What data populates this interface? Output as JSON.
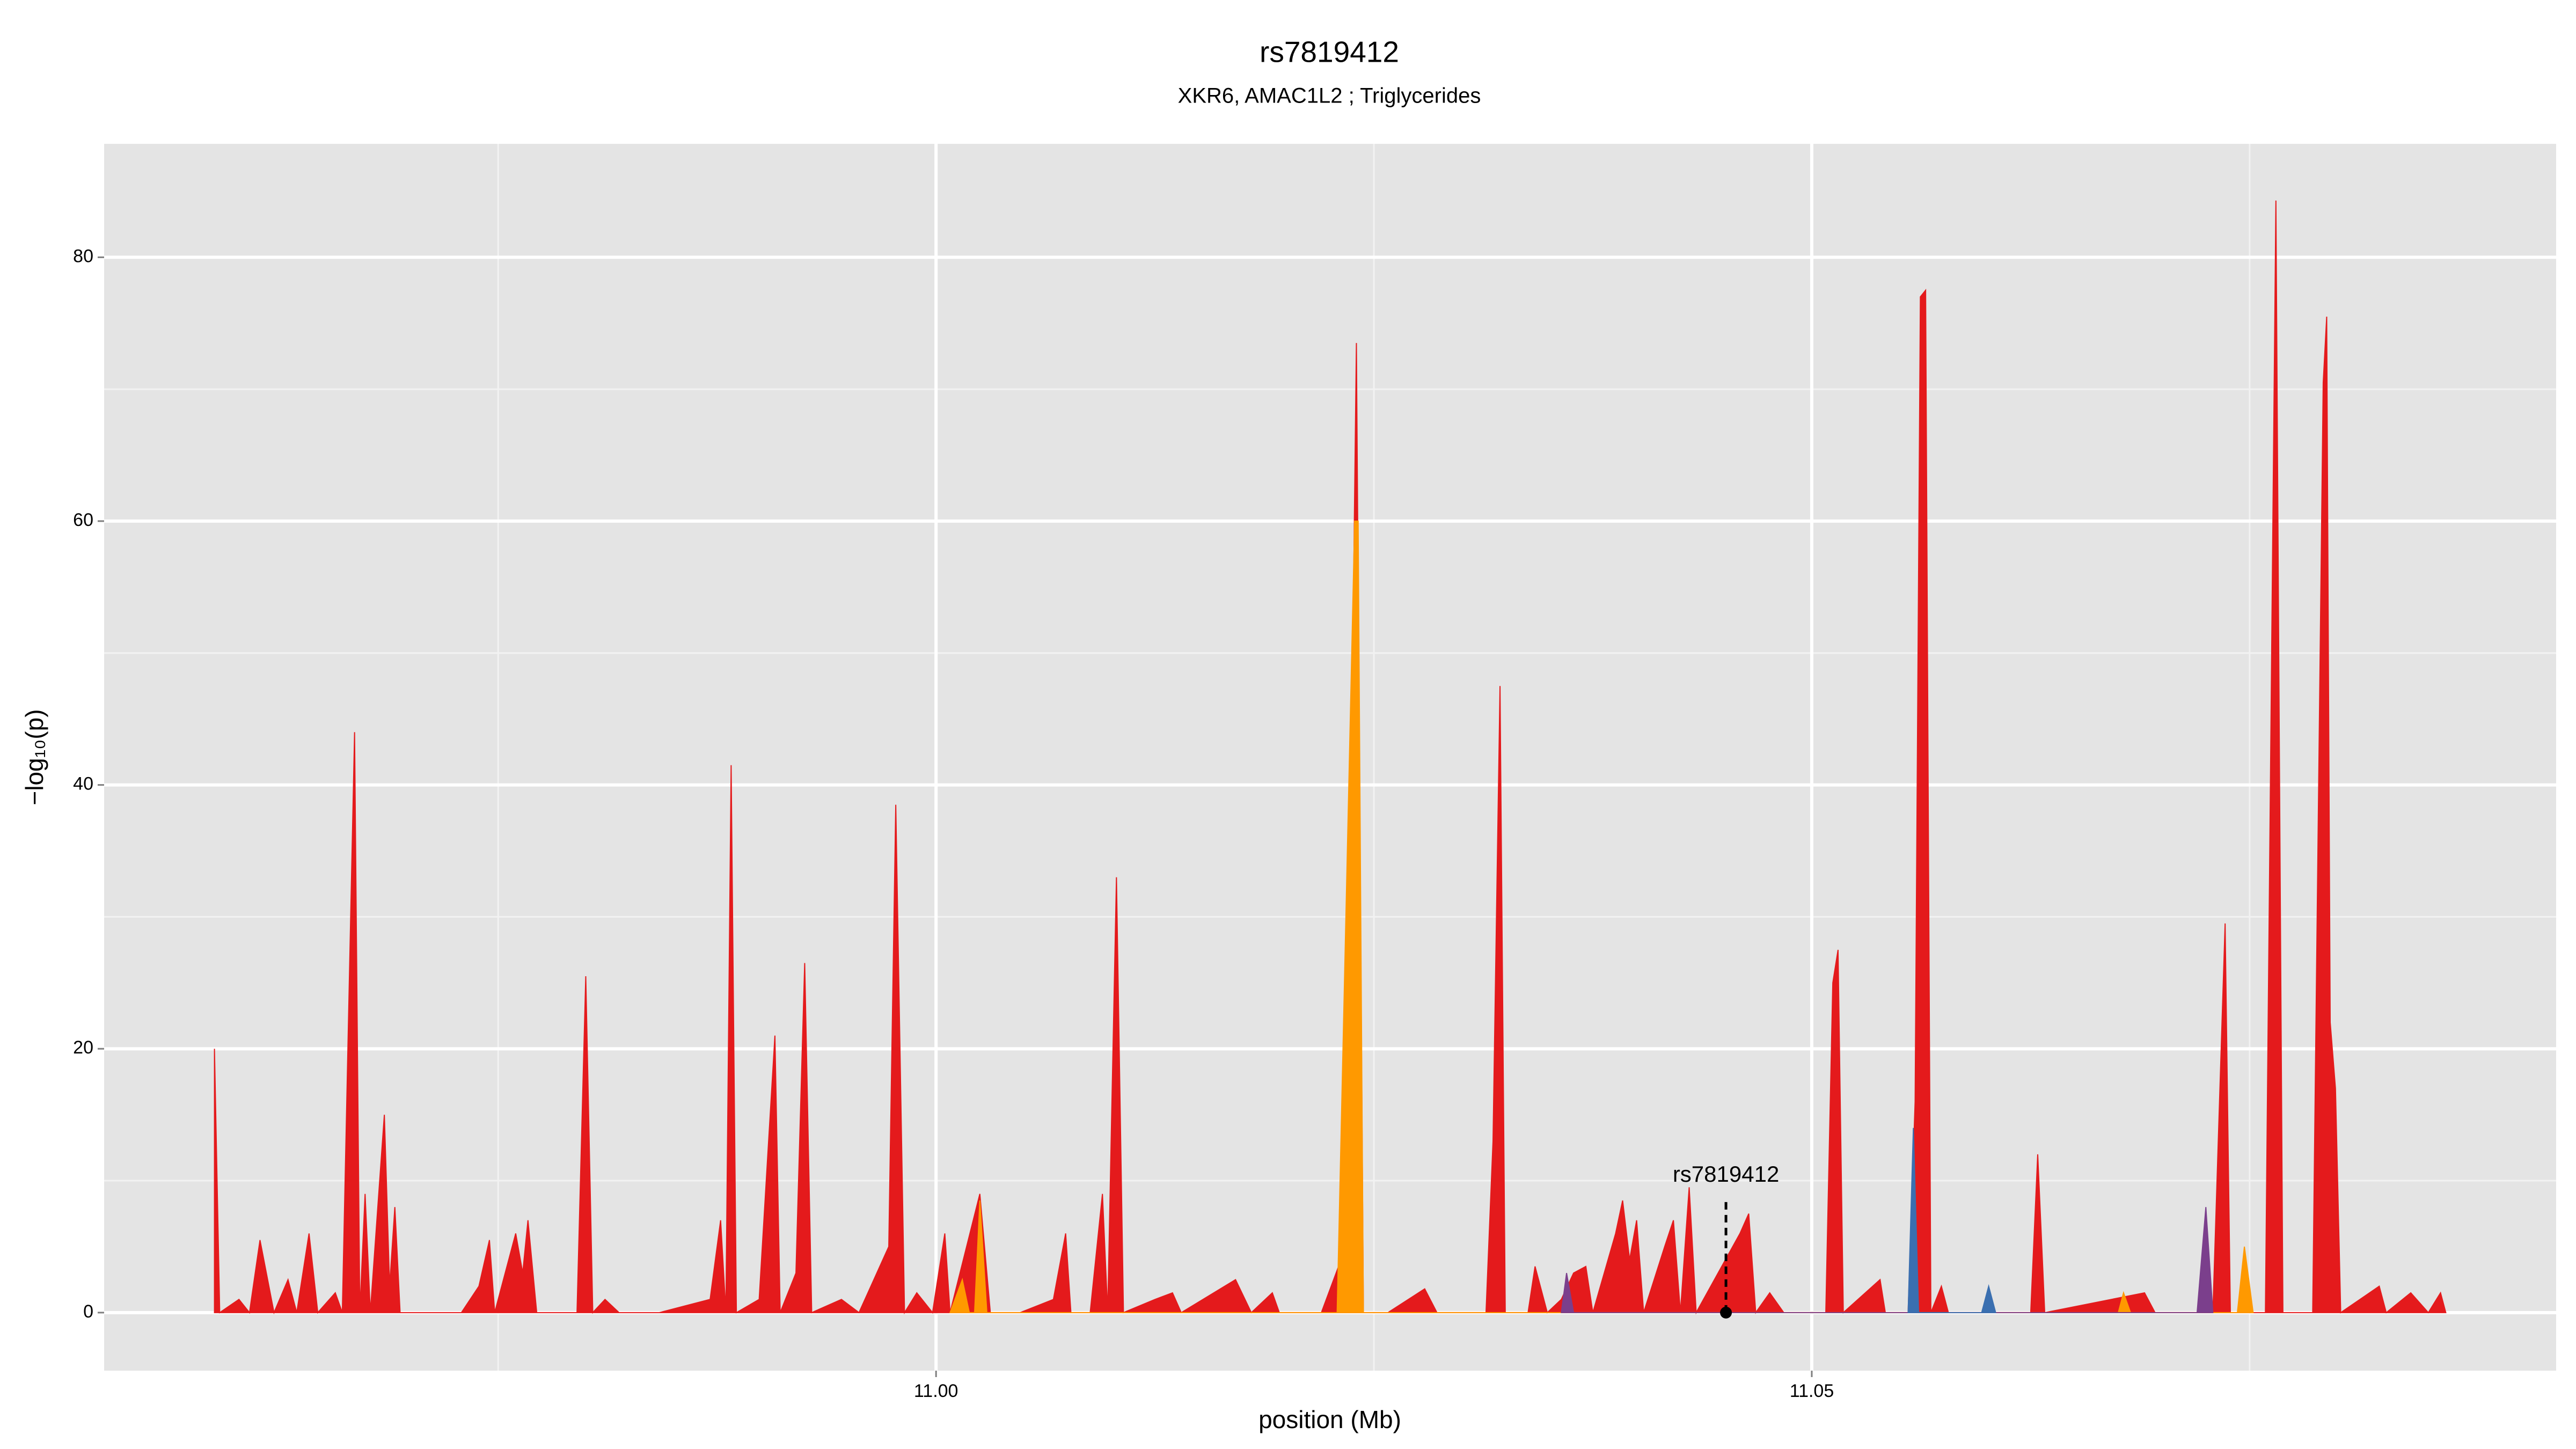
{
  "chart_data": {
    "type": "area",
    "title": "rs7819412",
    "subtitle": "XKR6, AMAC1L2 ; Triglycerides",
    "x_label": "position (Mb)",
    "y_label": "−log₁₀(p)",
    "xlim": [
      10.9525,
      11.0925
    ],
    "ylim": [
      -4.4,
      88.6
    ],
    "xticks": [
      {
        "value": 11,
        "label": "11.00"
      },
      {
        "value": 11.05,
        "label": "11.05"
      }
    ],
    "yticks": [
      0,
      20,
      40,
      60,
      80
    ],
    "x_minor_grid": [
      10.975,
      11.025,
      11.075
    ],
    "y_minor_grid": [
      10,
      30,
      50,
      70
    ],
    "grid": true,
    "background": "#e4e4e4",
    "series": [
      {
        "color": "#e41a1c",
        "x": [
          10.9588,
          10.9591,
          10.9602,
          10.9608,
          10.9614,
          10.9622,
          10.963,
          10.9635,
          10.9642,
          10.9647,
          10.9657,
          10.9661,
          10.9668,
          10.9671,
          10.9674,
          10.9677,
          10.9685,
          10.9688,
          10.9691,
          10.9694,
          10.9729,
          10.9739,
          10.9745,
          10.9748,
          10.976,
          10.9764,
          10.9767,
          10.9772,
          10.9795,
          10.98,
          10.9804,
          10.9811,
          10.9819,
          10.9842,
          10.9871,
          10.9877,
          10.988,
          10.9883,
          10.9886,
          10.9899,
          10.9908,
          10.9911,
          10.992,
          10.9925,
          10.9929,
          10.9946,
          10.9956,
          10.9973,
          10.9977,
          10.9982,
          10.9989,
          10.9998,
          11.0005,
          11.0008,
          11.0025,
          11.0031,
          11.0048,
          11.0067,
          11.0074,
          11.0077,
          11.0088,
          11.0095,
          11.0098,
          11.0103,
          11.0107,
          11.0125,
          11.0135,
          11.014,
          11.0171,
          11.018,
          11.0192,
          11.0196,
          11.022,
          11.0234,
          11.024,
          11.0244,
          11.0258,
          11.0279,
          11.0286,
          11.0314,
          11.0318,
          11.0322,
          11.0325,
          11.0338,
          11.0342,
          11.0349,
          11.0357,
          11.0364,
          11.0371,
          11.0375,
          11.0388,
          11.0392,
          11.0396,
          11.04,
          11.0404,
          11.0416,
          11.0421,
          11.0425,
          11.043,
          11.0434,
          11.0459,
          11.0464,
          11.0468,
          11.0476,
          11.0484,
          11.0508,
          11.0512,
          11.0515,
          11.0518,
          11.0539,
          11.0542,
          11.0555,
          11.0559,
          11.0562,
          11.0565,
          11.0568,
          11.0574,
          11.0578,
          11.0625,
          11.0629,
          11.0633,
          11.069,
          11.0696,
          11.0729,
          11.0736,
          11.0739,
          11.0759,
          11.0765,
          11.0769,
          11.0786,
          11.0792,
          11.0794,
          11.0796,
          11.0799,
          11.0802,
          11.0824,
          11.0828,
          11.0842,
          11.0852,
          11.0859,
          11.0862
        ],
        "values": [
          20,
          0,
          1,
          0,
          5.5,
          0,
          2.5,
          0,
          6,
          0,
          1.5,
          0,
          44,
          0,
          9,
          0,
          15,
          2,
          8,
          0,
          0,
          2,
          5.5,
          0,
          6,
          3,
          7,
          0,
          0,
          25.5,
          0,
          1,
          0,
          0,
          1,
          7,
          0,
          41.5,
          0,
          1,
          21,
          0,
          3,
          26.5,
          0,
          1,
          0,
          5,
          38.5,
          0,
          1.5,
          0,
          6,
          0,
          9,
          0,
          0,
          1,
          6,
          0,
          0,
          9,
          0,
          33,
          0,
          1,
          1.5,
          0,
          2.5,
          0,
          1.5,
          0,
          0,
          5,
          73.5,
          0,
          0,
          1.8,
          0,
          0,
          13,
          47.5,
          0,
          0,
          3.5,
          0,
          1,
          3,
          3.5,
          0,
          6,
          8.5,
          4,
          7,
          0,
          5,
          7,
          0,
          9.5,
          0,
          6,
          7.5,
          0,
          1.5,
          0,
          0,
          25,
          27.5,
          0,
          2.5,
          0,
          0,
          16,
          77,
          77.5,
          0,
          2,
          0,
          0,
          12,
          0,
          1.5,
          0,
          0,
          29.5,
          0,
          0,
          84.3,
          0,
          0,
          70.5,
          75.5,
          22,
          17,
          0,
          2,
          0,
          1.5,
          0,
          1.5,
          0
        ]
      },
      {
        "color": "#ff9900",
        "x": [
          11.0008,
          11.0015,
          11.0019,
          11.0022,
          11.0025,
          11.0029,
          11.0229,
          11.0239,
          11.0241,
          11.0244,
          11.0675,
          11.0678,
          11.0682,
          11.0743,
          11.0747,
          11.0752
        ],
        "values": [
          0,
          2.5,
          0,
          0,
          8.5,
          0,
          0,
          60,
          60,
          0,
          0,
          1.5,
          0,
          0,
          5,
          0
        ]
      },
      {
        "color": "#7b3f8c",
        "x": [
          11.0357,
          11.036,
          11.0364,
          11.072,
          11.0725,
          11.0729
        ],
        "values": [
          0,
          3,
          0,
          0,
          8,
          0
        ]
      },
      {
        "color": "#3a6fb0",
        "x": [
          11.0555,
          11.0558,
          11.0561,
          11.0597,
          11.0601,
          11.0605
        ],
        "values": [
          0,
          14,
          0,
          0,
          2,
          0
        ]
      }
    ],
    "annotation": {
      "label": "rs7819412",
      "x": 11.0451,
      "y": 0
    }
  }
}
